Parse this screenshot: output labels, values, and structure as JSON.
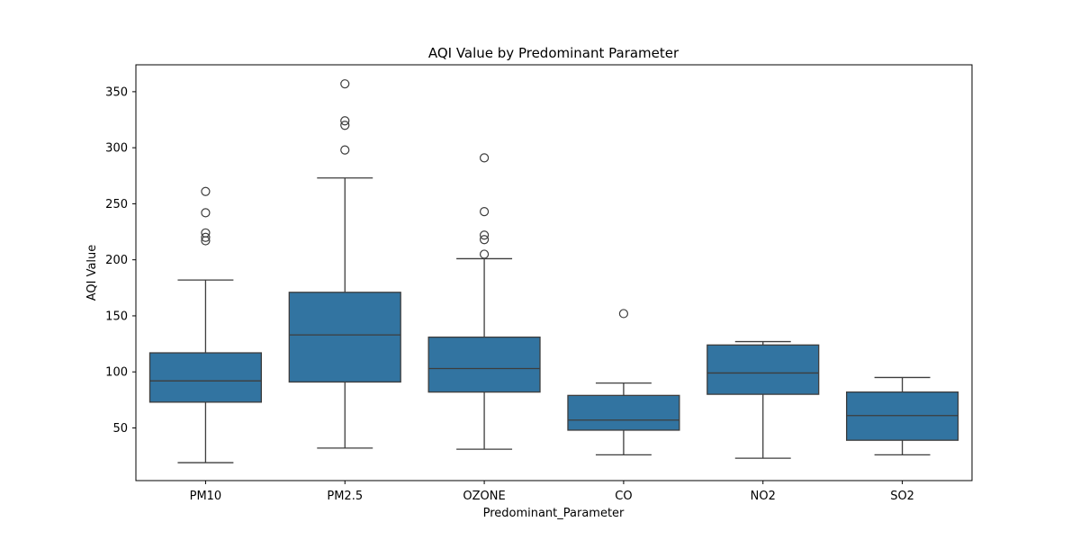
{
  "chart_data": {
    "type": "box",
    "title": "AQI Value by Predominant Parameter",
    "xlabel": "Predominant_Parameter",
    "ylabel": "AQI Value",
    "ylim": [
      3,
      374
    ],
    "yticks": [
      50,
      100,
      150,
      200,
      250,
      300,
      350
    ],
    "grid": false,
    "legend": "none",
    "box_color": "#3274a1",
    "line_color": "#3d3d3d",
    "categories": [
      "PM10",
      "PM2.5",
      "OZONE",
      "CO",
      "NO2",
      "SO2"
    ],
    "boxes": [
      {
        "category": "PM10",
        "whisker_low": 19,
        "q1": 73,
        "median": 92,
        "q3": 117,
        "whisker_high": 182,
        "outliers": [
          217,
          220,
          224,
          242,
          261
        ]
      },
      {
        "category": "PM2.5",
        "whisker_low": 32,
        "q1": 91,
        "median": 133,
        "q3": 171,
        "whisker_high": 273,
        "outliers": [
          298,
          320,
          324,
          357
        ]
      },
      {
        "category": "OZONE",
        "whisker_low": 31,
        "q1": 82,
        "median": 103,
        "q3": 131,
        "whisker_high": 201,
        "outliers": [
          205,
          218,
          222,
          243,
          291
        ]
      },
      {
        "category": "CO",
        "whisker_low": 26,
        "q1": 48,
        "median": 57,
        "q3": 79,
        "whisker_high": 90,
        "outliers": [
          152
        ]
      },
      {
        "category": "NO2",
        "whisker_low": 23,
        "q1": 80,
        "median": 99,
        "q3": 124,
        "whisker_high": 127,
        "outliers": []
      },
      {
        "category": "SO2",
        "whisker_low": 26,
        "q1": 39,
        "median": 61,
        "q3": 82,
        "whisker_high": 95,
        "outliers": []
      }
    ]
  }
}
